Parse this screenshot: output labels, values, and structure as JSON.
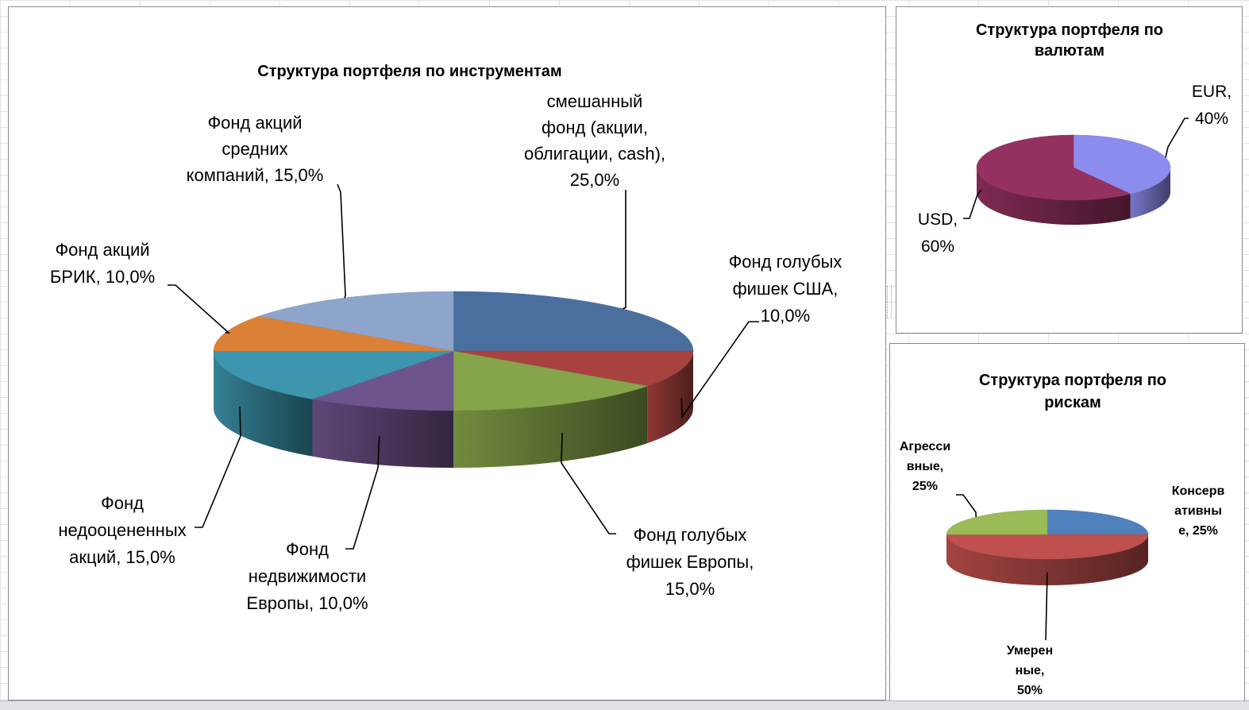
{
  "chart_data": [
    {
      "type": "pie",
      "title": "Структура портфеля по инструментам",
      "slices": [
        {
          "label": "смешанный фонд (акции, облигации, cash), 25,0%",
          "lines": [
            "смешанный",
            "фонд (акции,",
            "облигации, cash),",
            "25,0%"
          ],
          "value": 25.0,
          "color": "#4a6f9f"
        },
        {
          "label": "Фонд голубых фишек США, 10,0%",
          "lines": [
            "Фонд голубых",
            "фишек США,",
            "10,0%"
          ],
          "value": 10.0,
          "color": "#a8423f"
        },
        {
          "label": "Фонд голубых фишек Европы, 15,0%",
          "lines": [
            "Фонд голубых",
            "фишек Европы,",
            "15,0%"
          ],
          "value": 15.0,
          "color": "#86a44a"
        },
        {
          "label": "Фонд недвижимости Европы, 10,0%",
          "lines": [
            "Фонд",
            "недвижимости",
            "Европы, 10,0%"
          ],
          "value": 10.0,
          "color": "#6e548d"
        },
        {
          "label": "Фонд недооцененных акций, 15,0%",
          "lines": [
            "Фонд",
            "недооцененных",
            "акций, 15,0%"
          ],
          "value": 15.0,
          "color": "#3d96ae"
        },
        {
          "label": "Фонд акций БРИК, 10,0%",
          "lines": [
            "Фонд акций",
            "БРИК, 10,0%"
          ],
          "value": 10.0,
          "color": "#da8137"
        },
        {
          "label": "Фонд акций средних компаний, 15,0%",
          "lines": [
            "Фонд акций",
            "средних",
            "компаний, 15,0%"
          ],
          "value": 15.0,
          "color": "#8ea5cb"
        }
      ],
      "legend": "none"
    },
    {
      "type": "pie",
      "title": "Структура портфеля по валютам",
      "title_lines": [
        "Структура  портфеля по",
        "валютам"
      ],
      "slices": [
        {
          "label": "EUR, 40%",
          "lines": [
            "EUR,",
            "40%"
          ],
          "value": 40,
          "color": "#8c8cee"
        },
        {
          "label": "USD, 60%",
          "lines": [
            "USD,",
            "60%"
          ],
          "value": 60,
          "color": "#943160"
        }
      ],
      "legend": "none"
    },
    {
      "type": "pie",
      "title": "Структура портфеля по рискам",
      "title_lines": [
        "Структура  портфеля по",
        "рискам"
      ],
      "slices": [
        {
          "label": "Консервативные, 25%",
          "lines": [
            "Консерв",
            "ативны",
            "е, 25%"
          ],
          "value": 25,
          "color": "#4f81bd"
        },
        {
          "label": "Умеренные, 50%",
          "lines": [
            "Умерен",
            "ные,",
            "50%"
          ],
          "value": 50,
          "color": "#c0504d"
        },
        {
          "label": "Агрессивные, 25%",
          "lines": [
            "Агресси",
            "вные,",
            "25%"
          ],
          "value": 25,
          "color": "#9bbb59"
        }
      ],
      "legend": "none"
    }
  ]
}
